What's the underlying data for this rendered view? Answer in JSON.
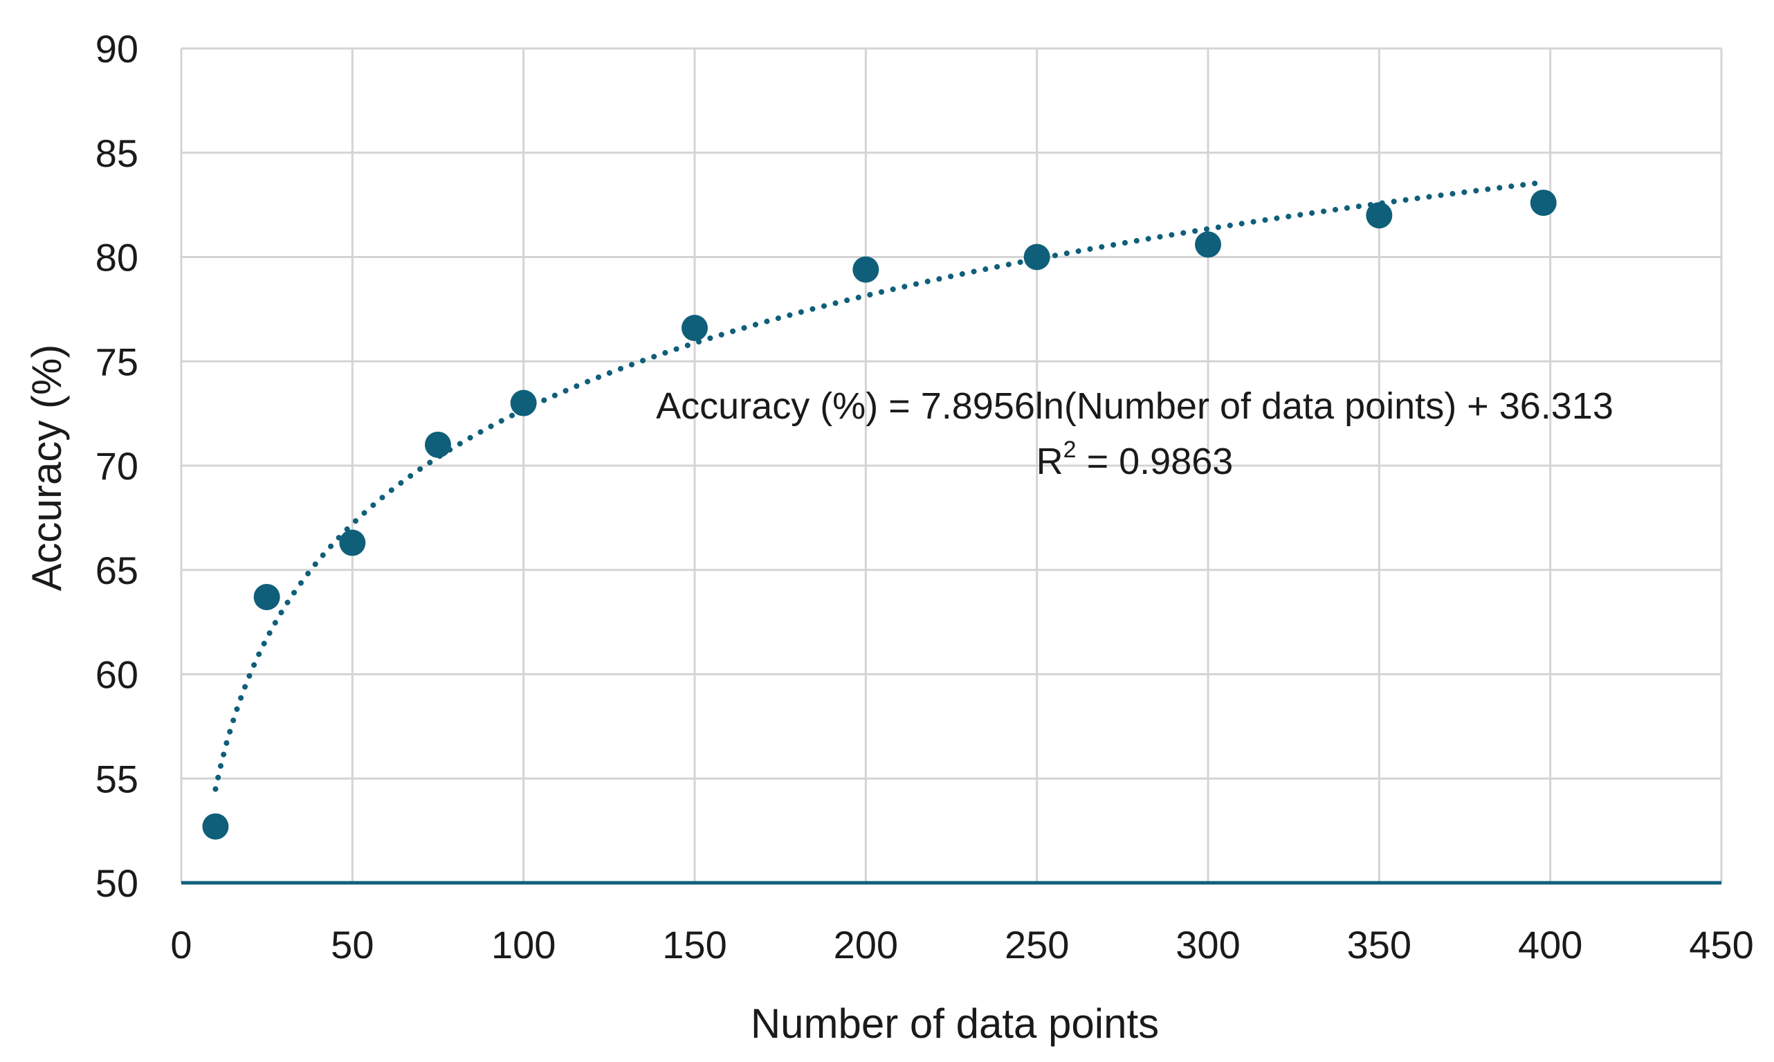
{
  "chart_data": {
    "type": "scatter",
    "title": "",
    "xlabel": "Number of data points",
    "ylabel": "Accuracy (%)",
    "xlim": [
      0,
      450
    ],
    "ylim": [
      50,
      90
    ],
    "xticks": [
      0,
      50,
      100,
      150,
      200,
      250,
      300,
      350,
      400,
      450
    ],
    "yticks": [
      50,
      55,
      60,
      65,
      70,
      75,
      80,
      85,
      90
    ],
    "grid": true,
    "legend": "none",
    "marker_color": "#0f5f7a",
    "series": [
      {
        "x": [
          10,
          25,
          50,
          75,
          100,
          150,
          200,
          250,
          300,
          350,
          398
        ],
        "y": [
          52.7,
          63.7,
          66.3,
          71.0,
          73.0,
          76.6,
          79.4,
          80.0,
          80.6,
          82.0,
          82.6
        ]
      }
    ],
    "trendline": {
      "type": "logarithmic",
      "a": 7.8956,
      "b": 36.313,
      "x_range": [
        10,
        398
      ],
      "style": "dotted",
      "color": "#0f5f7a"
    },
    "annotations": {
      "equation": "Accuracy (%) = 7.8956ln(Number of data points) + 36.313",
      "r2_prefix": "R",
      "r2_sup": "2",
      "r2_value": " = 0.9863"
    }
  }
}
